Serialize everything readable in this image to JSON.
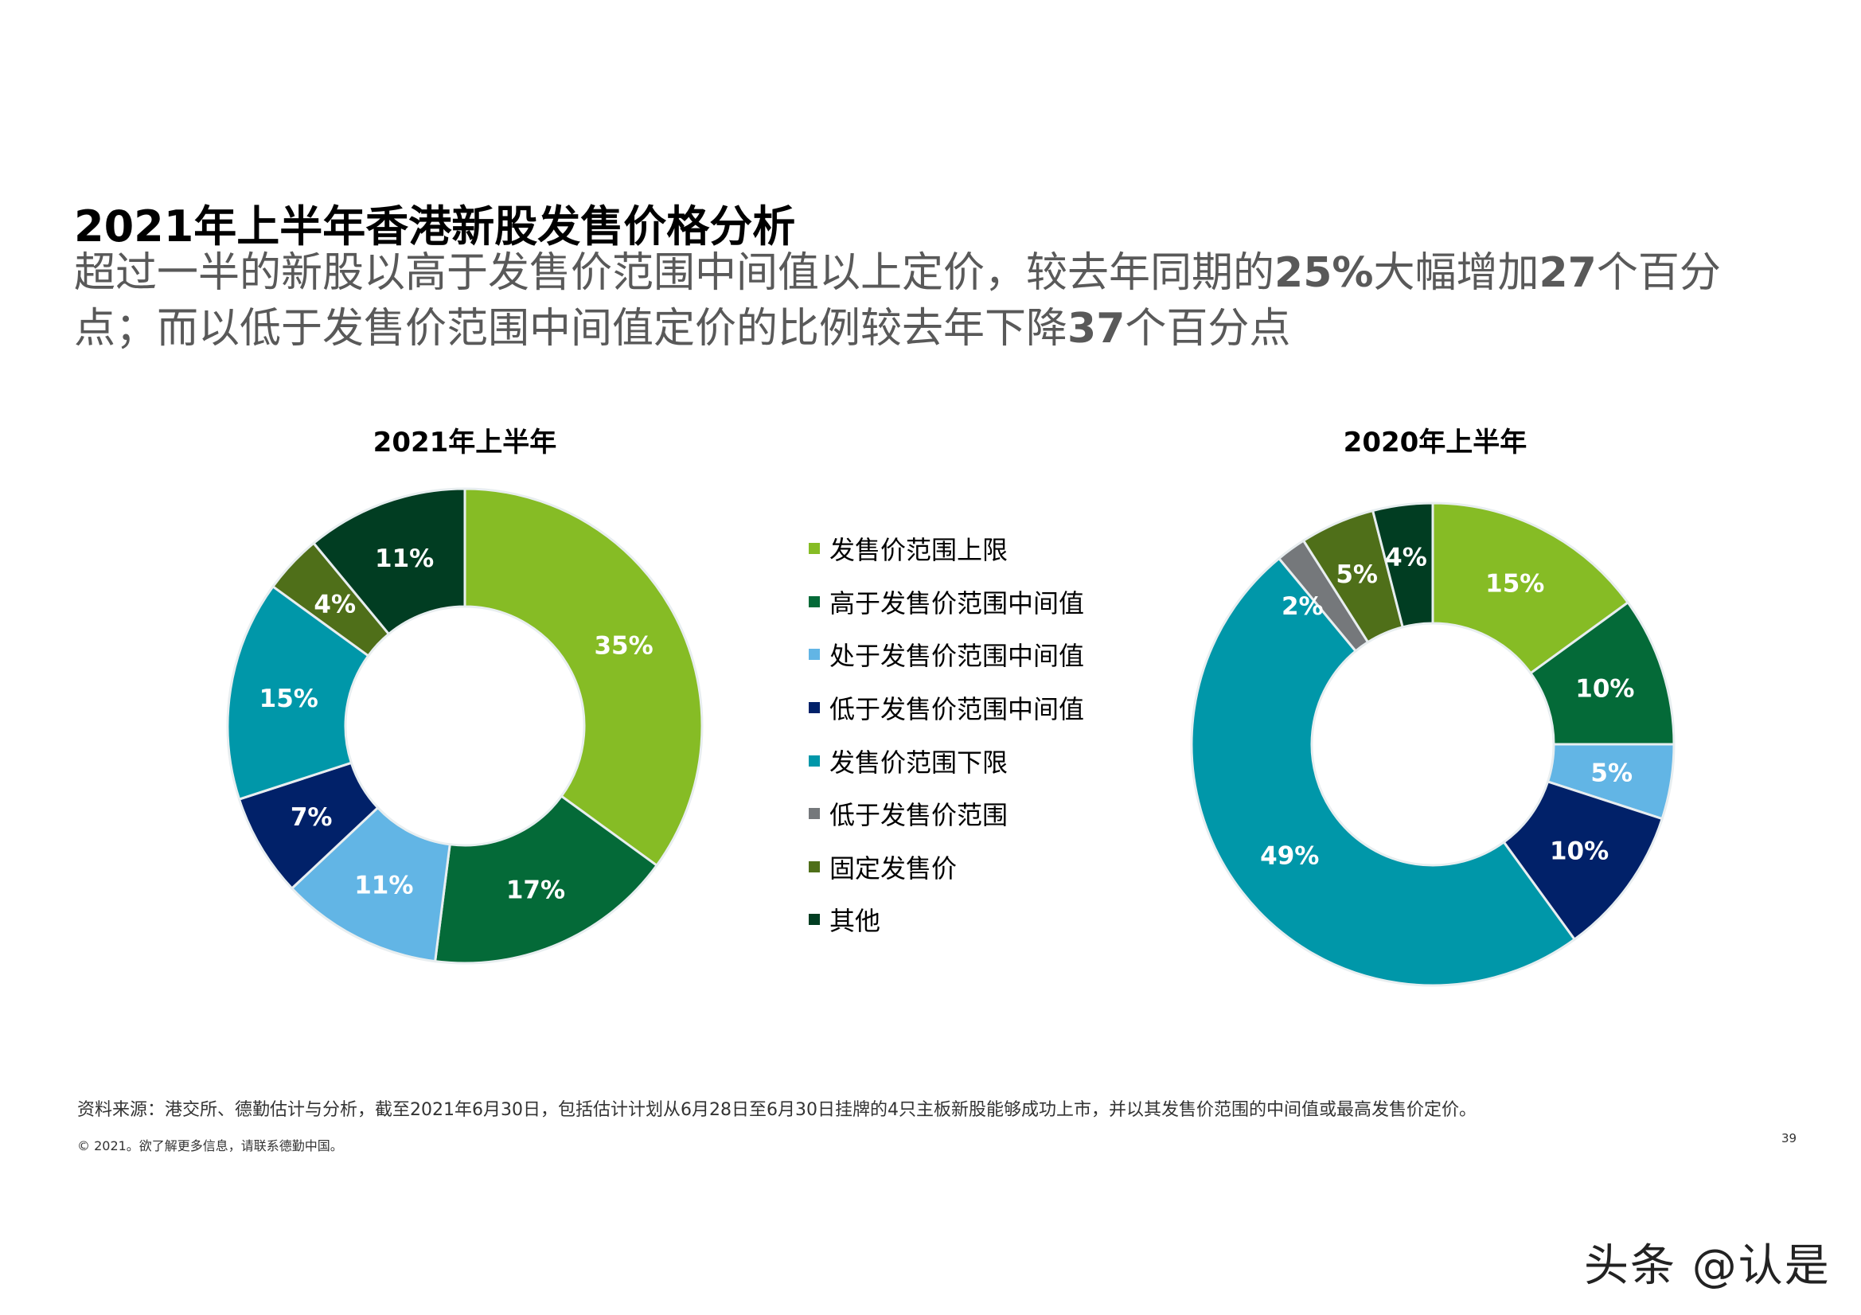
{
  "header": {
    "title": "2021年上半年香港新股发售价格分析",
    "subtitle_parts": [
      "超过一半的新股以高于发售价范围中间值以上定价，较去年同期的",
      "25%",
      "大幅增加",
      "27",
      "个百分点；而以低于发售价范围中间值定价的比例较去年下降",
      "37",
      "个百分点"
    ]
  },
  "chart_data": [
    {
      "type": "pie",
      "donut": true,
      "title": "2021年上半年",
      "categories": [
        "发售价范围上限",
        "高于发售价范围中间值",
        "处于发售价范围中间值",
        "低于发售价范围中间值",
        "发售价范围下限",
        "低于发售价范围",
        "固定发售价",
        "其他"
      ],
      "values": [
        35,
        17,
        11,
        7,
        15,
        0,
        4,
        11
      ],
      "labels": [
        "35%",
        "17%",
        "11%",
        "7%",
        "15%",
        "",
        "4%",
        "11%"
      ],
      "unit": "%"
    },
    {
      "type": "pie",
      "donut": true,
      "title": "2020年上半年",
      "categories": [
        "发售价范围上限",
        "高于发售价范围中间值",
        "处于发售价范围中间值",
        "低于发售价范围中间值",
        "发售价范围下限",
        "低于发售价范围",
        "固定发售价",
        "其他"
      ],
      "values": [
        15,
        10,
        5,
        10,
        49,
        2,
        5,
        4
      ],
      "labels": [
        "15%",
        "10%",
        "5%",
        "10%",
        "49%",
        "2%",
        "5%",
        "4%"
      ],
      "unit": "%"
    }
  ],
  "legend": {
    "placement": "center",
    "items": [
      {
        "label": "发售价范围上限",
        "color": "#86bc25"
      },
      {
        "label": "高于发售价范围中间值",
        "color": "#046a38"
      },
      {
        "label": "处于发售价范围中间值",
        "color": "#62b5e5"
      },
      {
        "label": "低于发售价范围中间值",
        "color": "#012169"
      },
      {
        "label": "发售价范围下限",
        "color": "#0097a9"
      },
      {
        "label": "低于发售价范围",
        "color": "#75787b"
      },
      {
        "label": "固定发售价",
        "color": "#4f6f19"
      },
      {
        "label": "其他",
        "color": "#013d22"
      }
    ]
  },
  "footer": {
    "source": "资料来源：港交所、德勤估计与分析，截至2021年6月30日，包括估计计划从6月28日至6月30日挂牌的4只主板新股能够成功上市，并以其发售价范围的中间值或最高发售价定价。",
    "copyright": "© 2021。欲了解更多信息，请联系德勤中国。",
    "page_number": "39",
    "watermark": "头条 @认是"
  }
}
